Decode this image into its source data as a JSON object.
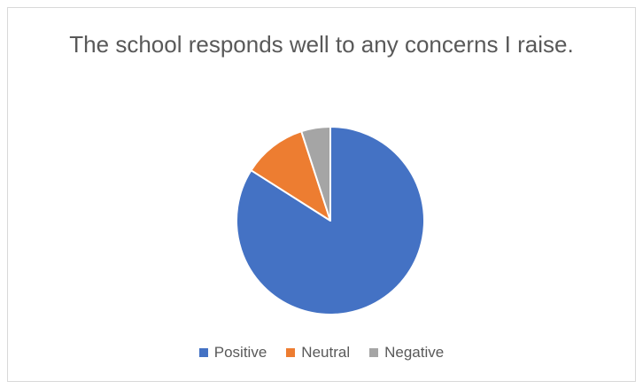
{
  "chart_data": {
    "type": "pie",
    "title": "The school responds well to any concerns I raise.",
    "categories": [
      "Positive",
      "Neutral",
      "Negative"
    ],
    "values": [
      84,
      11,
      5
    ],
    "colors": [
      "#4472c4",
      "#ed7d31",
      "#a5a5a5"
    ],
    "legend_position": "bottom",
    "start_angle": "top",
    "direction": "clockwise"
  }
}
